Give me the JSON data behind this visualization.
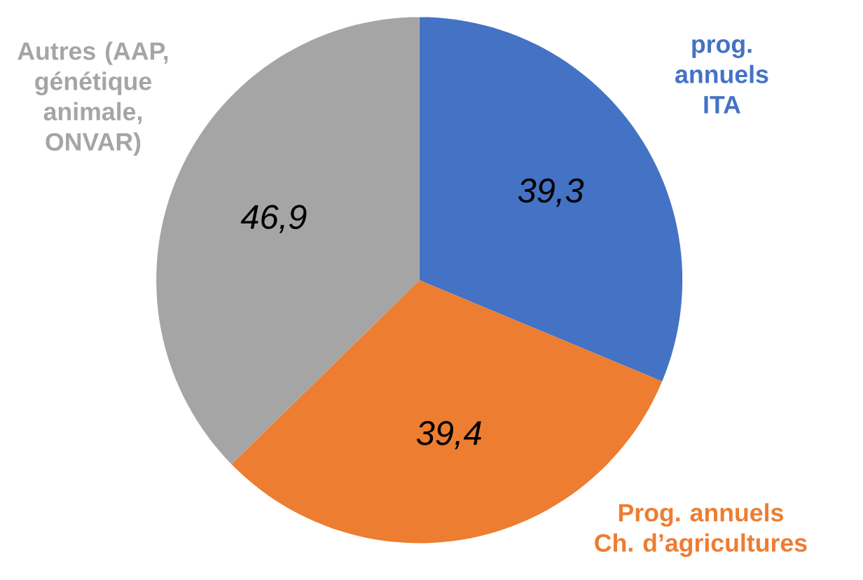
{
  "chart_data": {
    "type": "pie",
    "categories": [
      "prog. annuels ITA",
      "Prog. annuels Ch. d’agricultures",
      "Autres (AAP, génétique animale, ONVAR)"
    ],
    "values": [
      39.3,
      39.4,
      46.9
    ],
    "value_labels": [
      "39,3",
      "39,4",
      "46,9"
    ],
    "colors": [
      "#4472c4",
      "#ed7d31",
      "#a5a5a5"
    ]
  }
}
